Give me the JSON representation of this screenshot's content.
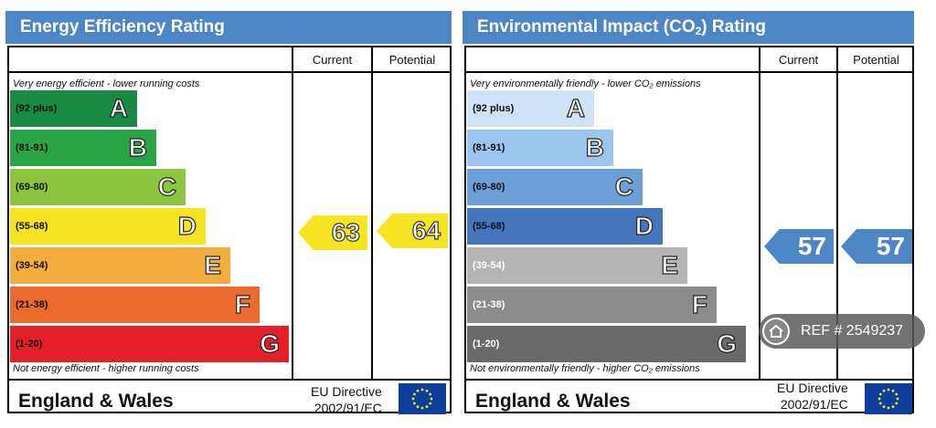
{
  "energy": {
    "title": "Energy Efficiency Rating",
    "current_label": "Current",
    "potential_label": "Potential",
    "top_note": "Very energy efficient - lower running costs",
    "bottom_note": "Not energy efficient - higher running costs",
    "bands": [
      {
        "range": "(92 plus)",
        "letter": "A",
        "color": "#1a8a43"
      },
      {
        "range": "(81-91)",
        "letter": "B",
        "color": "#2aa545"
      },
      {
        "range": "(69-80)",
        "letter": "C",
        "color": "#8cc63f"
      },
      {
        "range": "(55-68)",
        "letter": "D",
        "color": "#f6e321"
      },
      {
        "range": "(39-54)",
        "letter": "E",
        "color": "#f4ac3c"
      },
      {
        "range": "(21-38)",
        "letter": "F",
        "color": "#ec6a2c"
      },
      {
        "range": "(1-20)",
        "letter": "G",
        "color": "#e3202a"
      }
    ],
    "current_value": "63",
    "potential_value": "64",
    "footer": "England & Wales",
    "directive_line1": "EU Directive",
    "directive_line2": "2002/91/EC"
  },
  "environment": {
    "title_main": "Environmental Impact (CO",
    "title_sub": "2",
    "title_end": ") Rating",
    "current_label": "Current",
    "potential_label": "Potential",
    "top_note": "Very environmentally friendly - lower CO₂ emissions",
    "bottom_note": "Not environmentally friendly - higher CO₂ emissions",
    "bands": [
      {
        "range": "(92 plus)",
        "letter": "A",
        "color": "#cfe3f6"
      },
      {
        "range": "(81-91)",
        "letter": "B",
        "color": "#9bc4ee"
      },
      {
        "range": "(69-80)",
        "letter": "C",
        "color": "#6c9ed8"
      },
      {
        "range": "(55-68)",
        "letter": "D",
        "color": "#4576bd"
      },
      {
        "range": "(39-54)",
        "letter": "E",
        "color": "#b4b4b4"
      },
      {
        "range": "(21-38)",
        "letter": "F",
        "color": "#8c8c8c"
      },
      {
        "range": "(1-20)",
        "letter": "G",
        "color": "#6a6a6a"
      }
    ],
    "current_value": "57",
    "potential_value": "57",
    "footer": "England & Wales",
    "directive_line1": "EU Directive",
    "directive_line2": "2002/91/EC"
  },
  "ref_badge": {
    "text": "REF # 2549237",
    "icon": "home-icon"
  }
}
